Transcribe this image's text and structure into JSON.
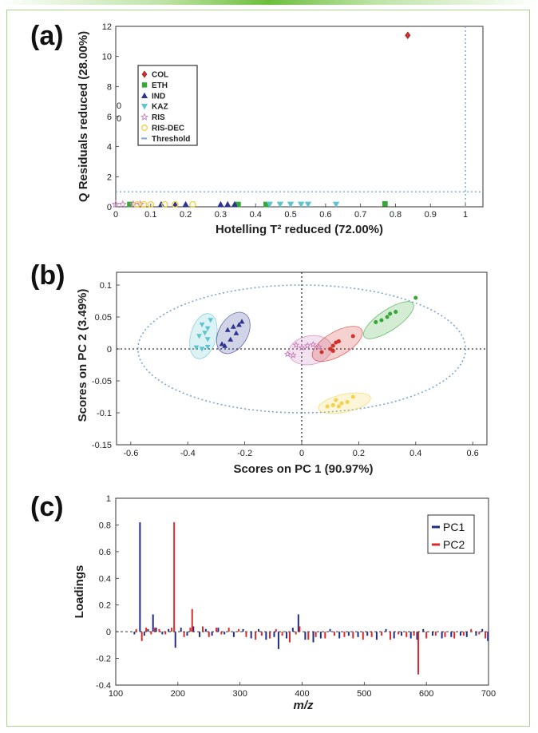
{
  "panels": {
    "a": "(a)",
    "b": "(b)",
    "c": "(c)"
  },
  "colors": {
    "COL": "#d2302b",
    "ETH": "#35a836",
    "IND": "#2c3590",
    "KAZ": "#5ec4cf",
    "RIS": "#c77ab7",
    "RIS-DEC": "#f2d24a",
    "threshold": "#7ba7cf",
    "PC1": "#1f2d8a",
    "PC2": "#e02828"
  },
  "chart_data": [
    {
      "id": "a",
      "type": "scatter",
      "xlabel": "Hotelling T² reduced (72.00%)",
      "ylabel": "Q Residuals reduced (28.00%)",
      "xlim": [
        0,
        1.05
      ],
      "ylim": [
        0,
        12
      ],
      "xticks": [
        "0",
        "0.1",
        "0.2",
        "0.3",
        "0.4",
        "0.5",
        "0.6",
        "0.7",
        "0.8",
        "0.9",
        "1"
      ],
      "yticks": [
        "0",
        "2",
        "4",
        "6",
        "8",
        "10",
        "12"
      ],
      "stray_labels": [
        "0",
        "0"
      ],
      "threshold": {
        "x": 1.0,
        "y": 1.0,
        "label": "Threshold"
      },
      "legend": [
        "COL",
        "ETH",
        "IND",
        "KAZ",
        "RIS",
        "RIS-DEC",
        "Threshold"
      ],
      "series": [
        {
          "name": "COL",
          "marker": "diamond",
          "points": [
            [
              0.835,
              11.4
            ]
          ]
        },
        {
          "name": "ETH",
          "marker": "square",
          "points": [
            [
              0.35,
              0.05
            ],
            [
              0.43,
              0.05
            ],
            [
              0.77,
              0.2
            ],
            [
              0.04,
              0.05
            ]
          ]
        },
        {
          "name": "IND",
          "marker": "triangle",
          "points": [
            [
              0.17,
              0.05
            ],
            [
              0.2,
              0.05
            ],
            [
              0.3,
              0.05
            ],
            [
              0.32,
              0.05
            ],
            [
              0.34,
              0.05
            ],
            [
              0.13,
              0.05
            ]
          ]
        },
        {
          "name": "KAZ",
          "marker": "triangle-down",
          "points": [
            [
              0.44,
              0.05
            ],
            [
              0.47,
              0.05
            ],
            [
              0.5,
              0.05
            ],
            [
              0.53,
              0.05
            ],
            [
              0.55,
              0.05
            ],
            [
              0.63,
              0.05
            ]
          ]
        },
        {
          "name": "RIS",
          "marker": "star",
          "points": [
            [
              0.0,
              0.05
            ],
            [
              0.02,
              0.05
            ],
            [
              0.05,
              0.05
            ],
            [
              0.07,
              0.05
            ]
          ]
        },
        {
          "name": "RIS-DEC",
          "marker": "circle",
          "points": [
            [
              0.06,
              0.05
            ],
            [
              0.08,
              0.05
            ],
            [
              0.1,
              0.05
            ],
            [
              0.14,
              0.05
            ],
            [
              0.17,
              0.05
            ],
            [
              0.22,
              0.05
            ]
          ]
        }
      ]
    },
    {
      "id": "b",
      "type": "scatter",
      "xlabel": "Scores on PC 1 (90.97%)",
      "ylabel": "Scores on PC 2 (3.49%)",
      "xlim": [
        -0.65,
        0.65
      ],
      "ylim": [
        -0.15,
        0.12
      ],
      "xticks": [
        "-0.6",
        "-0.4",
        "-0.2",
        "0",
        "0.2",
        "0.4",
        "0.6"
      ],
      "yticks": [
        "-0.15",
        "-0.1",
        "-0.05",
        "0",
        "0.05",
        "0.1"
      ],
      "confidence_ellipse": {
        "cx": 0.0,
        "cy": 0.0,
        "rx": 0.575,
        "ry": 0.1
      },
      "group_ellipses": [
        {
          "name": "KAZ",
          "cx": -0.345,
          "cy": 0.02,
          "rx": 0.095,
          "ry": 0.03,
          "angle_deg": 75
        },
        {
          "name": "IND",
          "cx": -0.24,
          "cy": 0.025,
          "rx": 0.09,
          "ry": 0.035,
          "angle_deg": 60
        },
        {
          "name": "RIS",
          "cx": 0.03,
          "cy": -0.002,
          "rx": 0.085,
          "ry": 0.035,
          "angle_deg": 10
        },
        {
          "name": "COL",
          "cx": 0.125,
          "cy": 0.008,
          "rx": 0.13,
          "ry": 0.028,
          "angle_deg": 30
        },
        {
          "name": "ETH",
          "cx": 0.305,
          "cy": 0.045,
          "rx": 0.14,
          "ry": 0.022,
          "angle_deg": 34
        },
        {
          "name": "RIS-DEC",
          "cx": 0.15,
          "cy": -0.085,
          "rx": 0.12,
          "ry": 0.018,
          "angle_deg": 12
        }
      ],
      "series": [
        {
          "name": "KAZ",
          "marker": "triangle-down",
          "points": [
            [
              -0.35,
              0.038
            ],
            [
              -0.33,
              0.032
            ],
            [
              -0.34,
              0.025
            ],
            [
              -0.36,
              0.02
            ],
            [
              -0.33,
              0.015
            ],
            [
              -0.37,
              0.002
            ],
            [
              -0.35,
              0.0
            ],
            [
              -0.33,
              0.003
            ],
            [
              -0.32,
              0.045
            ]
          ]
        },
        {
          "name": "IND",
          "marker": "triangle",
          "points": [
            [
              -0.26,
              0.03
            ],
            [
              -0.24,
              0.035
            ],
            [
              -0.22,
              0.038
            ],
            [
              -0.23,
              0.025
            ],
            [
              -0.25,
              0.015
            ],
            [
              -0.27,
              0.005
            ],
            [
              -0.28,
              0.008
            ],
            [
              -0.21,
              0.043
            ]
          ]
        },
        {
          "name": "RIS",
          "marker": "star",
          "points": [
            [
              -0.05,
              -0.008
            ],
            [
              -0.03,
              -0.01
            ],
            [
              0.0,
              0.002
            ],
            [
              0.02,
              0.005
            ],
            [
              0.04,
              0.007
            ],
            [
              0.06,
              0.003
            ],
            [
              -0.02,
              0.006
            ]
          ]
        },
        {
          "name": "COL",
          "marker": "circle",
          "points": [
            [
              0.07,
              -0.005
            ],
            [
              0.1,
              0.0
            ],
            [
              0.11,
              0.005
            ],
            [
              0.12,
              0.01
            ],
            [
              0.13,
              0.012
            ],
            [
              0.11,
              -0.003
            ],
            [
              0.18,
              0.02
            ]
          ]
        },
        {
          "name": "ETH",
          "marker": "circle",
          "points": [
            [
              0.26,
              0.042
            ],
            [
              0.28,
              0.045
            ],
            [
              0.3,
              0.05
            ],
            [
              0.31,
              0.055
            ],
            [
              0.33,
              0.058
            ],
            [
              0.4,
              0.08
            ]
          ]
        },
        {
          "name": "RIS-DEC",
          "marker": "circle",
          "points": [
            [
              0.09,
              -0.09
            ],
            [
              0.11,
              -0.088
            ],
            [
              0.12,
              -0.08
            ],
            [
              0.14,
              -0.085
            ],
            [
              0.16,
              -0.083
            ],
            [
              0.18,
              -0.075
            ],
            [
              0.13,
              -0.09
            ]
          ]
        }
      ]
    },
    {
      "id": "c",
      "type": "bar",
      "xlabel": "m/z",
      "ylabel": "Loadings",
      "xlim": [
        100,
        700
      ],
      "ylim": [
        -0.4,
        1.0
      ],
      "xticks": [
        "100",
        "200",
        "300",
        "400",
        "500",
        "600",
        "700"
      ],
      "yticks": [
        "-0.4",
        "-0.2",
        "0",
        "0.2",
        "0.4",
        "0.6",
        "0.8",
        "1"
      ],
      "legend": [
        "PC1",
        "PC2"
      ],
      "series": [
        {
          "name": "PC1",
          "x": [
            130,
            139,
            146,
            152,
            160,
            165,
            175,
            185,
            196,
            205,
            215,
            225,
            235,
            245,
            255,
            265,
            275,
            290,
            305,
            318,
            330,
            342,
            355,
            362,
            375,
            385,
            394,
            405,
            418,
            430,
            445,
            460,
            475,
            490,
            505,
            520,
            535,
            548,
            560,
            575,
            585,
            595,
            610,
            625,
            640,
            655,
            665,
            680,
            690,
            699
          ],
          "values": [
            -0.02,
            0.82,
            -0.03,
            0.02,
            0.13,
            0.03,
            -0.02,
            0.02,
            -0.12,
            0.03,
            -0.03,
            0.04,
            -0.04,
            0.02,
            -0.03,
            0.03,
            -0.02,
            -0.04,
            0.02,
            -0.05,
            0.02,
            -0.06,
            -0.04,
            -0.13,
            -0.05,
            0.03,
            0.13,
            -0.06,
            -0.08,
            -0.05,
            0.02,
            -0.05,
            -0.03,
            -0.04,
            -0.03,
            -0.06,
            0.02,
            -0.05,
            -0.03,
            -0.05,
            -0.06,
            0.02,
            -0.03,
            -0.05,
            -0.04,
            -0.03,
            -0.04,
            -0.03,
            0.02,
            -0.07
          ]
        },
        {
          "name": "PC2",
          "x": [
            133,
            142,
            149,
            157,
            163,
            170,
            180,
            190,
            194,
            210,
            220,
            223,
            240,
            250,
            262,
            270,
            282,
            298,
            310,
            325,
            335,
            348,
            358,
            368,
            380,
            390,
            396,
            410,
            422,
            437,
            452,
            468,
            482,
            498,
            512,
            528,
            542,
            555,
            568,
            580,
            587,
            600,
            615,
            630,
            645,
            660,
            672,
            685,
            695
          ],
          "values": [
            0.02,
            -0.07,
            0.03,
            -0.02,
            0.03,
            0.02,
            -0.02,
            0.03,
            0.82,
            -0.04,
            0.03,
            0.17,
            0.04,
            -0.04,
            0.03,
            -0.02,
            0.03,
            0.02,
            -0.04,
            -0.06,
            -0.03,
            -0.05,
            0.02,
            -0.03,
            -0.08,
            -0.02,
            0.04,
            -0.06,
            -0.04,
            -0.05,
            -0.03,
            -0.04,
            -0.05,
            -0.06,
            -0.04,
            -0.03,
            -0.06,
            -0.02,
            -0.04,
            -0.03,
            -0.32,
            -0.05,
            -0.03,
            -0.04,
            -0.05,
            -0.03,
            0.02,
            -0.02,
            -0.05
          ]
        }
      ]
    }
  ]
}
